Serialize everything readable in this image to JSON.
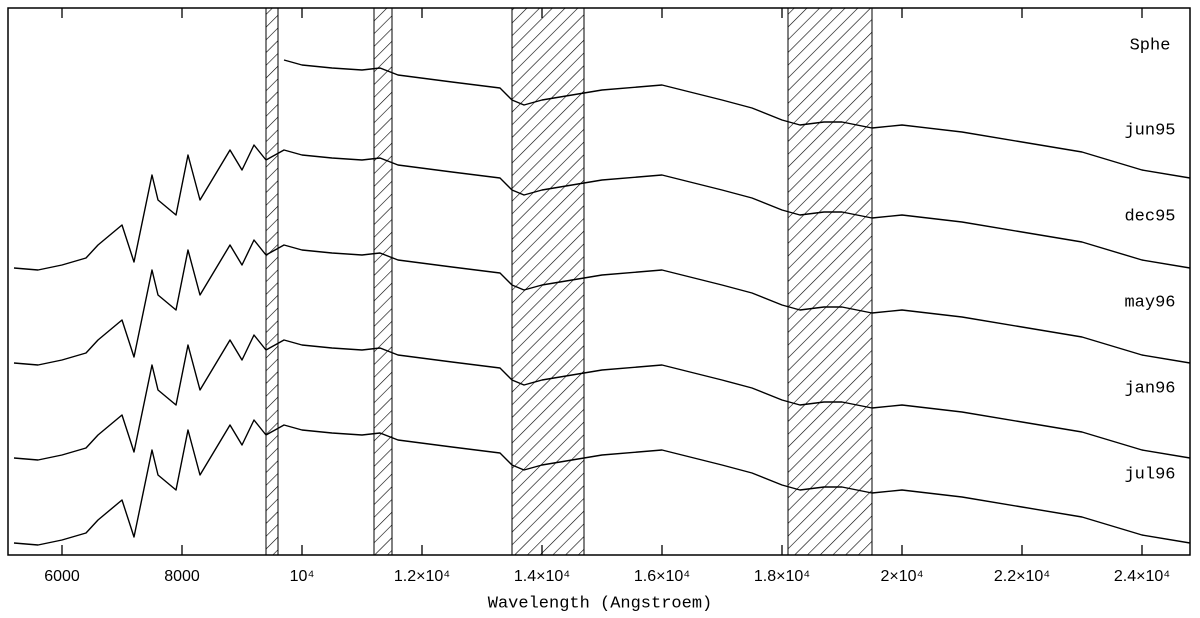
{
  "chart_data": {
    "type": "line",
    "annotation": "Sphe",
    "x_label": "Wavelength (Angstroem)",
    "x": [
      5200,
      5600,
      6000,
      6400,
      6600,
      7000,
      7200,
      7500,
      7600,
      7900,
      8100,
      8300,
      8500,
      8800,
      9000,
      9200,
      9400,
      9700,
      10000,
      10500,
      11000,
      11300,
      11600,
      12500,
      13300,
      13500,
      13700,
      14000,
      14500,
      15000,
      16000,
      17000,
      17500,
      18000,
      18300,
      18700,
      19000,
      19500,
      20000,
      21000,
      22000,
      23000,
      24000,
      24800
    ],
    "xlim": [
      5100,
      24800
    ],
    "xticks": [
      6000,
      8000,
      {
        "value": 10000,
        "label": "10⁴"
      },
      {
        "value": 12000,
        "label": "1.2×10⁴"
      },
      {
        "value": 14000,
        "label": "1.4×10⁴"
      },
      {
        "value": 16000,
        "label": "1.6×10⁴"
      },
      {
        "value": 18000,
        "label": "1.8×10⁴"
      },
      {
        "value": 20000,
        "label": "2×10⁴"
      },
      {
        "value": 22000,
        "label": "2.2×10⁴"
      },
      {
        "value": 24000,
        "label": "2.4×10⁴"
      }
    ],
    "ylim": [
      0,
      547
    ],
    "hatched_regions": [
      [
        9400,
        9600
      ],
      [
        11200,
        11500
      ],
      [
        13500,
        14700
      ],
      [
        18100,
        19500
      ]
    ],
    "series": [
      {
        "name": "jun95",
        "color": "#000000",
        "values": [
          null,
          null,
          null,
          null,
          null,
          null,
          null,
          null,
          null,
          null,
          null,
          null,
          null,
          null,
          null,
          null,
          null,
          495,
          490,
          487,
          485,
          487,
          480,
          473,
          467,
          455,
          450,
          455,
          460,
          465,
          470,
          455,
          447,
          435,
          430,
          433,
          433,
          427,
          430,
          423,
          413,
          403,
          385,
          377
        ]
      },
      {
        "name": "dec95",
        "color": "#000000",
        "values": [
          287,
          285,
          290,
          297,
          310,
          330,
          293,
          380,
          355,
          340,
          400,
          355,
          375,
          405,
          385,
          410,
          395,
          405,
          400,
          397,
          395,
          397,
          390,
          383,
          377,
          365,
          360,
          365,
          370,
          375,
          380,
          365,
          357,
          345,
          340,
          343,
          343,
          337,
          340,
          333,
          323,
          313,
          295,
          287
        ]
      },
      {
        "name": "may96",
        "color": "#000000",
        "values": [
          192,
          190,
          195,
          202,
          215,
          235,
          198,
          285,
          260,
          245,
          305,
          260,
          280,
          310,
          290,
          315,
          300,
          310,
          305,
          302,
          300,
          302,
          295,
          288,
          282,
          270,
          265,
          270,
          275,
          280,
          285,
          270,
          262,
          250,
          245,
          248,
          248,
          242,
          245,
          238,
          228,
          218,
          200,
          192
        ]
      },
      {
        "name": "jan96",
        "color": "#000000",
        "values": [
          97,
          95,
          100,
          107,
          120,
          140,
          103,
          190,
          165,
          150,
          210,
          165,
          185,
          215,
          195,
          220,
          205,
          215,
          210,
          207,
          205,
          207,
          200,
          193,
          187,
          175,
          170,
          175,
          180,
          185,
          190,
          175,
          167,
          155,
          150,
          153,
          153,
          147,
          150,
          143,
          133,
          123,
          105,
          97
        ]
      },
      {
        "name": "jul96",
        "color": "#000000",
        "values": [
          12,
          10,
          15,
          22,
          35,
          55,
          18,
          105,
          80,
          65,
          125,
          80,
          100,
          130,
          110,
          135,
          120,
          130,
          125,
          122,
          120,
          122,
          115,
          108,
          102,
          90,
          85,
          90,
          95,
          100,
          105,
          90,
          82,
          70,
          65,
          68,
          68,
          62,
          65,
          58,
          48,
          38,
          20,
          12
        ]
      }
    ]
  }
}
